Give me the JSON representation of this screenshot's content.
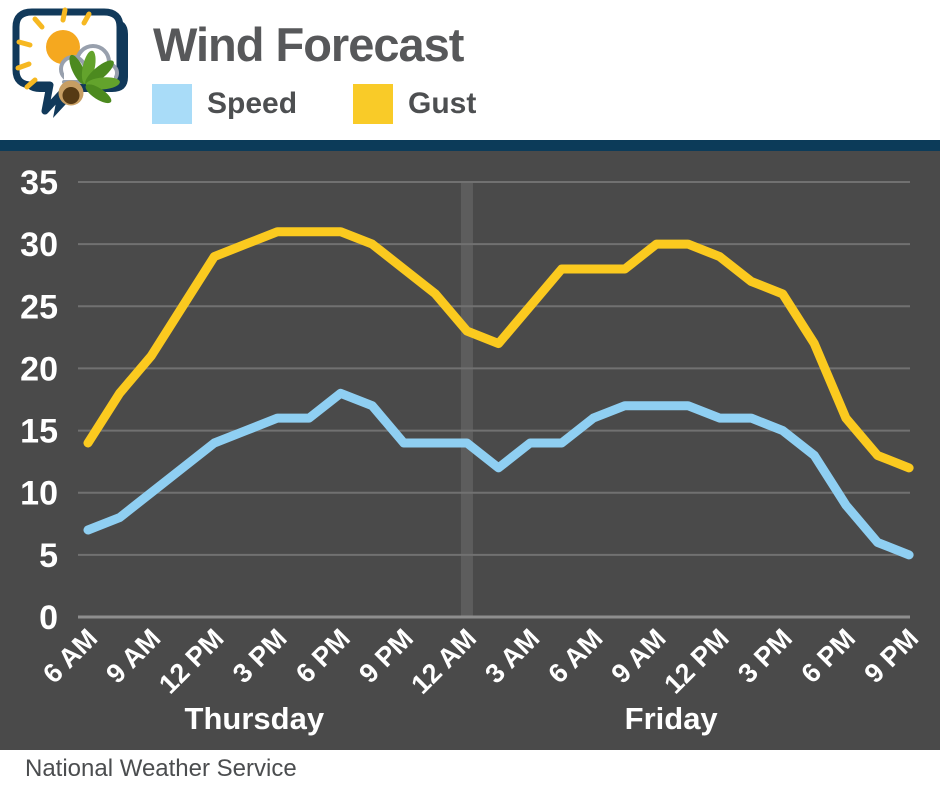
{
  "header": {
    "title": "Wind Forecast",
    "logo_name": "nws-sun-cloud-buckeye-logo",
    "legend": [
      {
        "label": "Speed",
        "color": "#a9dcf8"
      },
      {
        "label": "Gust",
        "color": "#f9cb28"
      }
    ]
  },
  "footer": {
    "text": "National Weather Service"
  },
  "chart_data": {
    "type": "line",
    "title": "Wind Forecast",
    "xlabel": "",
    "ylabel": "",
    "ylim": [
      0,
      35
    ],
    "y_ticks": [
      0,
      5,
      10,
      15,
      20,
      25,
      30,
      35
    ],
    "x_hours": [
      0,
      1.5,
      3,
      4.5,
      6,
      7.5,
      9,
      10.5,
      12,
      13.5,
      15,
      16.5,
      18,
      19.5,
      21,
      22.5,
      24,
      25.5,
      27,
      28.5,
      30,
      31.5,
      33,
      34.5,
      36,
      37.5,
      39
    ],
    "x_tick_hours": [
      0,
      3,
      6,
      9,
      12,
      15,
      18,
      21,
      24,
      27,
      30,
      33,
      36,
      39
    ],
    "x_tick_labels": [
      "6 AM",
      "9 AM",
      "12 PM",
      "3 PM",
      "6 PM",
      "9 PM",
      "12 AM",
      "3 AM",
      "6 AM",
      "9 AM",
      "12 PM",
      "3 PM",
      "6 PM",
      "9 PM"
    ],
    "day_labels": [
      {
        "label": "Thursday",
        "x_hour": 7.9
      },
      {
        "label": "Friday",
        "x_hour": 27.7
      }
    ],
    "day_divider_hour": 18,
    "series": [
      {
        "name": "Speed",
        "color": "#8fcff2",
        "values": [
          7,
          8,
          10,
          12,
          14,
          15,
          16,
          16,
          18,
          17,
          14,
          14,
          14,
          12,
          14,
          14,
          16,
          17,
          17,
          17,
          16,
          16,
          15,
          13,
          9,
          6,
          5
        ]
      },
      {
        "name": "Gust",
        "color": "#fbca1f",
        "values": [
          14,
          18,
          21,
          25,
          29,
          30,
          31,
          31,
          31,
          30,
          28,
          26,
          23,
          22,
          25,
          28,
          28,
          28,
          30,
          30,
          29,
          27,
          26,
          22,
          16,
          13,
          12
        ]
      }
    ],
    "background": "#4a4a4a",
    "gridline_color": "#717171",
    "baseline_color": "#8e8e8e",
    "day_divider_color": "#5d5d5d",
    "grid": "horizontal-only",
    "legend_position": "top-left-above-chart"
  }
}
